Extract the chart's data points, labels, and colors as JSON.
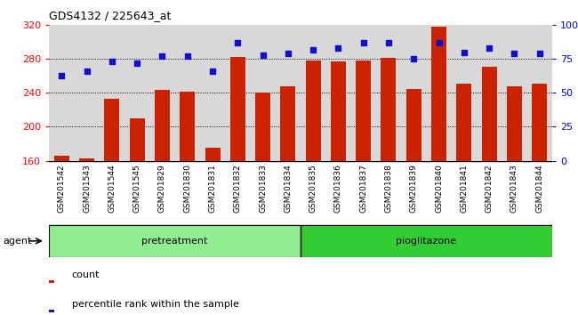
{
  "title": "GDS4132 / 225643_at",
  "categories": [
    "GSM201542",
    "GSM201543",
    "GSM201544",
    "GSM201545",
    "GSM201829",
    "GSM201830",
    "GSM201831",
    "GSM201832",
    "GSM201833",
    "GSM201834",
    "GSM201835",
    "GSM201836",
    "GSM201837",
    "GSM201838",
    "GSM201839",
    "GSM201840",
    "GSM201841",
    "GSM201842",
    "GSM201843",
    "GSM201844"
  ],
  "bar_values": [
    166,
    163,
    233,
    210,
    244,
    242,
    175,
    282,
    240,
    248,
    278,
    277,
    278,
    281,
    245,
    318,
    251,
    271,
    248,
    251
  ],
  "dot_values": [
    63,
    66,
    73,
    72,
    77,
    77,
    66,
    87,
    78,
    79,
    82,
    83,
    87,
    87,
    75,
    87,
    80,
    83,
    79,
    79
  ],
  "pretreatment_count": 10,
  "pioglitazone_count": 10,
  "group_labels": [
    "pretreatment",
    "pioglitazone"
  ],
  "group_colors": [
    "#90EE90",
    "#32CD32"
  ],
  "group_label": "agent",
  "ylim_left": [
    160,
    320
  ],
  "ylim_right": [
    0,
    100
  ],
  "yticks_left": [
    160,
    200,
    240,
    280,
    320
  ],
  "yticks_right": [
    0,
    25,
    50,
    75,
    100
  ],
  "ytick_labels_right": [
    "0",
    "25",
    "50",
    "75",
    "100%"
  ],
  "bar_color": "#CC2200",
  "dot_color": "#1111CC",
  "grid_color": "#000000",
  "bg_color": "#D8D8D8",
  "xticklabel_bg": "#C8C8C8",
  "legend_count_label": "count",
  "legend_pct_label": "percentile rank within the sample"
}
